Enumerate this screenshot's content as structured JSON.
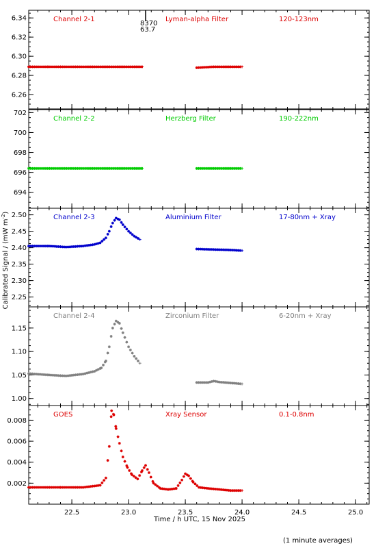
{
  "common": {
    "xlabel": "Time / h UTC, 15 Nov 2025",
    "ylabel": "Calibrated Signal / (mW m",
    "ylabel_sup": "-2",
    "ylabel_close": ")",
    "footnote": "(1 minute averages)",
    "xlim": [
      22.12,
      25.12
    ],
    "xticks": [
      22.5,
      23.0,
      23.5,
      24.0,
      24.5,
      25.0
    ],
    "xtick_labels": [
      "22.5",
      "23.0",
      "23.5",
      "24.0",
      "24.5",
      "25.0"
    ],
    "marker_line_x": 23.15,
    "marker_text_1": "8370",
    "marker_text_2": "63.7",
    "marker_color": "#000000"
  },
  "chart_data": [
    {
      "type": "scatter",
      "channel": "Channel 2-1",
      "filter": "Lyman-alpha Filter",
      "band": "120-123nm",
      "color": "#dd0000",
      "ylim": [
        6.245,
        6.348
      ],
      "yticks": [
        6.26,
        6.28,
        6.3,
        6.32,
        6.34
      ],
      "ytick_labels": [
        "6.26",
        "6.28",
        "6.30",
        "6.32",
        "6.34"
      ],
      "segments": [
        {
          "x": [
            22.12,
            22.3,
            22.5,
            22.7,
            22.9,
            23.12
          ],
          "y": [
            6.289,
            6.289,
            6.289,
            6.289,
            6.289,
            6.289
          ]
        },
        {
          "x": [
            23.6,
            23.75,
            23.9,
            24.0
          ],
          "y": [
            6.288,
            6.289,
            6.289,
            6.289
          ]
        }
      ]
    },
    {
      "type": "scatter",
      "channel": "Channel 2-2",
      "filter": "Herzberg Filter",
      "band": "190-222nm",
      "color": "#00cc00",
      "ylim": [
        692.4,
        702.3
      ],
      "yticks": [
        694,
        696,
        698,
        700,
        702
      ],
      "ytick_labels": [
        "694",
        "696",
        "698",
        "700",
        "702"
      ],
      "segments": [
        {
          "x": [
            22.12,
            22.5,
            22.9,
            23.12
          ],
          "y": [
            696.4,
            696.4,
            696.4,
            696.4
          ]
        },
        {
          "x": [
            23.6,
            24.0
          ],
          "y": [
            696.4,
            696.4
          ]
        }
      ]
    },
    {
      "type": "scatter",
      "channel": "Channel 2-3",
      "filter": "Aluminium Filter",
      "band": "17-80nm + Xray",
      "color": "#0000cc",
      "ylim": [
        2.22,
        2.52
      ],
      "yticks": [
        2.25,
        2.3,
        2.35,
        2.4,
        2.45,
        2.5
      ],
      "ytick_labels": [
        "2.25",
        "2.30",
        "2.35",
        "2.40",
        "2.45",
        "2.50"
      ],
      "segments": [
        {
          "x": [
            22.12,
            22.3,
            22.45,
            22.6,
            22.7,
            22.75,
            22.8,
            22.83,
            22.86,
            22.89,
            22.92,
            22.95,
            23.0,
            23.05,
            23.1
          ],
          "y": [
            2.405,
            2.405,
            2.402,
            2.405,
            2.41,
            2.415,
            2.43,
            2.45,
            2.475,
            2.49,
            2.485,
            2.47,
            2.45,
            2.435,
            2.425
          ]
        },
        {
          "x": [
            23.6,
            23.7,
            23.8,
            23.9,
            24.0
          ],
          "y": [
            2.396,
            2.395,
            2.394,
            2.393,
            2.391
          ]
        }
      ]
    },
    {
      "type": "scatter",
      "channel": "Channel 2-4",
      "filter": "Zirconium Filter",
      "band": "6-20nm + Xray",
      "color": "#808080",
      "ylim": [
        0.985,
        1.195
      ],
      "yticks": [
        1.0,
        1.05,
        1.1,
        1.15
      ],
      "ytick_labels": [
        "1.00",
        "1.05",
        "1.10",
        "1.15"
      ],
      "segments": [
        {
          "x": [
            22.12,
            22.3,
            22.45,
            22.6,
            22.7,
            22.76,
            22.8,
            22.83,
            22.86,
            22.89,
            22.92,
            22.95,
            23.0,
            23.05,
            23.1
          ],
          "y": [
            1.053,
            1.05,
            1.048,
            1.052,
            1.058,
            1.065,
            1.08,
            1.11,
            1.15,
            1.165,
            1.16,
            1.14,
            1.11,
            1.09,
            1.075
          ]
        },
        {
          "x": [
            23.6,
            23.7,
            23.75,
            23.8,
            23.9,
            24.0
          ],
          "y": [
            1.034,
            1.034,
            1.037,
            1.035,
            1.033,
            1.031
          ]
        }
      ]
    },
    {
      "type": "scatter",
      "channel": "GOES",
      "filter": "Xray Sensor",
      "band": "0.1-0.8nm",
      "color": "#dd0000",
      "ylim": [
        0.0,
        0.0094
      ],
      "yticks": [
        0.002,
        0.004,
        0.006,
        0.008
      ],
      "ytick_labels": [
        "0.002",
        "0.004",
        "0.006",
        "0.008"
      ],
      "segments": [
        {
          "x": [
            22.12,
            22.4,
            22.6,
            22.75,
            22.8,
            22.83,
            22.85,
            22.87,
            22.89,
            22.92,
            22.95,
            22.99,
            23.03,
            23.08,
            23.12,
            23.15,
            23.18,
            23.22,
            23.28,
            23.35,
            23.42,
            23.47,
            23.5,
            23.53,
            23.57,
            23.62,
            23.7,
            23.8,
            23.9,
            24.0
          ],
          "y": [
            0.0016,
            0.0016,
            0.0016,
            0.0018,
            0.0025,
            0.0055,
            0.0089,
            0.0085,
            0.0072,
            0.0058,
            0.0045,
            0.0035,
            0.0028,
            0.0024,
            0.0032,
            0.0037,
            0.003,
            0.002,
            0.0015,
            0.0014,
            0.0015,
            0.0023,
            0.0029,
            0.0027,
            0.0021,
            0.0016,
            0.0015,
            0.0014,
            0.0013,
            0.0013
          ]
        }
      ]
    }
  ]
}
